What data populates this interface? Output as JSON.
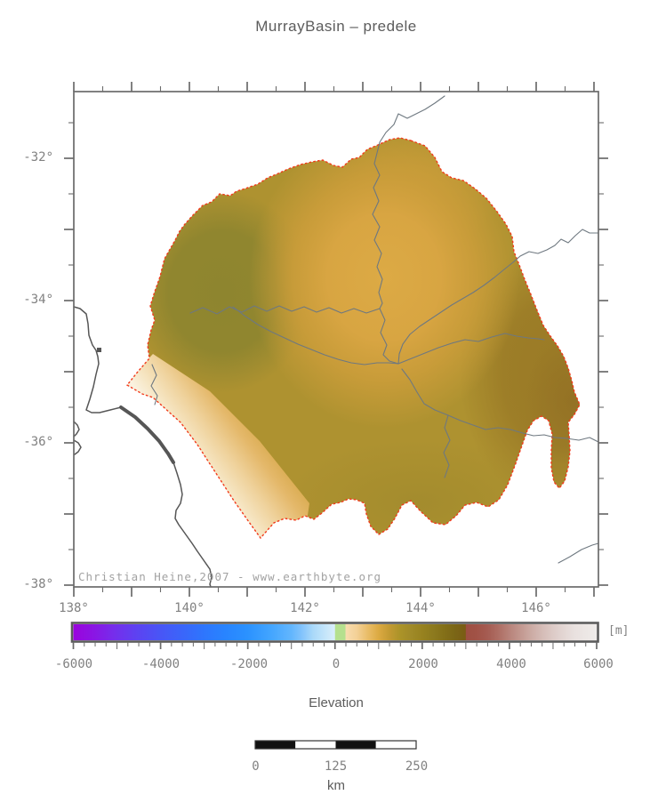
{
  "title": "MurrayBasin – predele",
  "map": {
    "attribution": "Christian Heine,2007 - www.earthbyte.org",
    "x_axis": {
      "labels": [
        "138°",
        "140°",
        "142°",
        "144°",
        "146°"
      ]
    },
    "y_axis": {
      "labels": [
        "-32°",
        "-34°",
        "-36°",
        "-38°"
      ]
    }
  },
  "colorbar": {
    "caption": "Elevation",
    "unit": "[m]",
    "range": [
      -6000,
      6000
    ],
    "labels": [
      "-6000",
      "-4000",
      "-2000",
      "0",
      "2000",
      "4000",
      "6000"
    ],
    "stops": [
      [
        0,
        "#9a04dd"
      ],
      [
        0.04,
        "#8a16e4"
      ],
      [
        0.08,
        "#742fec"
      ],
      [
        0.125,
        "#5b44f2"
      ],
      [
        0.167,
        "#4856f6"
      ],
      [
        0.21,
        "#3a66fa"
      ],
      [
        0.25,
        "#2e76fd"
      ],
      [
        0.29,
        "#2884ff"
      ],
      [
        0.333,
        "#2b92ff"
      ],
      [
        0.375,
        "#41a4ff"
      ],
      [
        0.417,
        "#63b6fd"
      ],
      [
        0.4375,
        "#84c4fc"
      ],
      [
        0.458,
        "#aad9f9"
      ],
      [
        0.479,
        "#c2e4fa"
      ],
      [
        0.4995,
        "#daeefb"
      ],
      [
        0.5005,
        "#b5e08e"
      ],
      [
        0.5195,
        "#b5e08e"
      ],
      [
        0.5205,
        "#f8ddb0"
      ],
      [
        0.542,
        "#f3d096"
      ],
      [
        0.5625,
        "#e9bd68"
      ],
      [
        0.583,
        "#dcaa42"
      ],
      [
        0.604,
        "#c39a32"
      ],
      [
        0.625,
        "#ab9328"
      ],
      [
        0.646,
        "#a08a28"
      ],
      [
        0.667,
        "#97821f"
      ],
      [
        0.6875,
        "#8d7a1e"
      ],
      [
        0.708,
        "#847018"
      ],
      [
        0.729,
        "#7b6616"
      ],
      [
        0.7495,
        "#7a5c14"
      ],
      [
        0.7505,
        "#9e4f42"
      ],
      [
        0.77,
        "#a15246"
      ],
      [
        0.792,
        "#a55c52"
      ],
      [
        0.8125,
        "#ae6e64"
      ],
      [
        0.833,
        "#b8837a"
      ],
      [
        0.854,
        "#c2978f"
      ],
      [
        0.875,
        "#ccaba4"
      ],
      [
        0.896,
        "#d5bcb7"
      ],
      [
        0.917,
        "#ddcbc7"
      ],
      [
        0.9375,
        "#e3d7d4"
      ],
      [
        0.958,
        "#e9e1df"
      ],
      [
        1,
        "#efecea"
      ]
    ]
  },
  "scalebar": {
    "labels": [
      "0",
      "125",
      "250"
    ],
    "unit": "km"
  },
  "colors": {
    "frame": "#6b6b6b",
    "basin_outline": "#f23a1c",
    "river": "#6e7880",
    "coastline": "#565656",
    "basin_base": "#ae9230",
    "basin_high_orange": "#dcaa45",
    "basin_west_dark": "#8e852f",
    "basin_east_brown": "#9a7a26",
    "fan_light": "#faf2e0",
    "background": "#ffffff"
  }
}
